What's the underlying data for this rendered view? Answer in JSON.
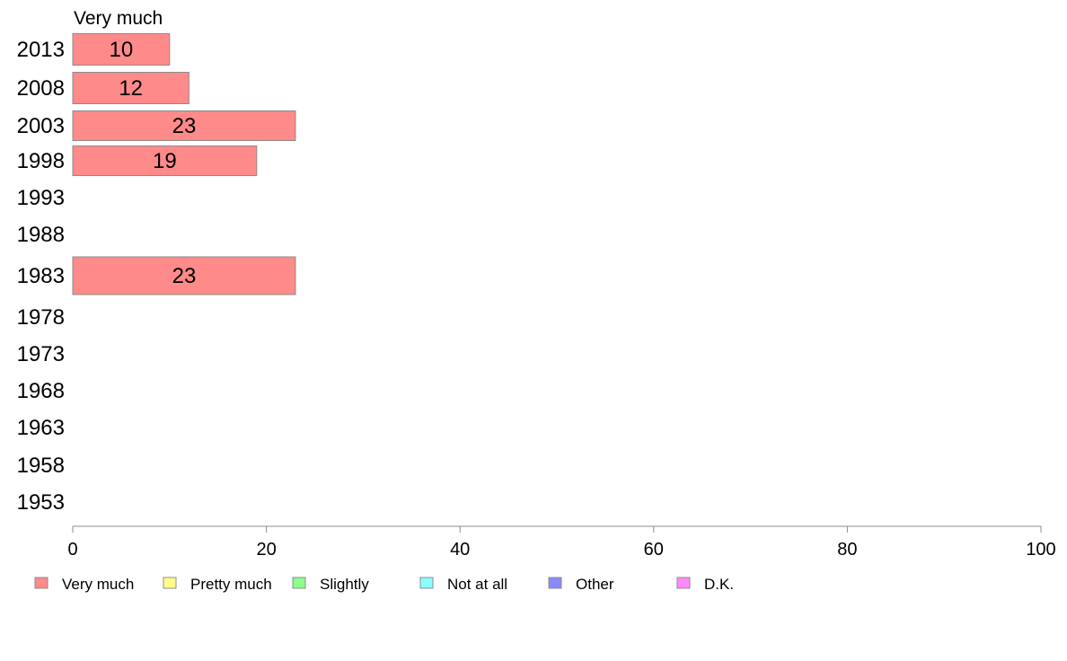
{
  "chart_data": {
    "type": "bar",
    "orientation": "horizontal",
    "panel_title": "Very much",
    "categories": [
      "2013",
      "2008",
      "2003",
      "1998",
      "1993",
      "1988",
      "1983",
      "1978",
      "1973",
      "1968",
      "1963",
      "1958",
      "1953"
    ],
    "series": [
      {
        "name": "Very much",
        "values": [
          10,
          12,
          23,
          19,
          null,
          null,
          23,
          null,
          null,
          null,
          null,
          null,
          null
        ]
      }
    ],
    "data_labels": [
      "10",
      "12",
      "23",
      "19",
      "",
      "",
      "23",
      "",
      "",
      "",
      "",
      "",
      ""
    ],
    "xlim": [
      0,
      100
    ],
    "x_ticks": [
      "0",
      "20",
      "40",
      "60",
      "80",
      "100"
    ],
    "grid": false,
    "legend": {
      "position": "bottom",
      "items": [
        {
          "label": "Very much",
          "color": "#ff8a8a"
        },
        {
          "label": "Pretty much",
          "color": "#ffff8a"
        },
        {
          "label": "Slightly",
          "color": "#8aff8a"
        },
        {
          "label": "Not at all",
          "color": "#8affff"
        },
        {
          "label": "Other",
          "color": "#8a8aff"
        },
        {
          "label": "D.K.",
          "color": "#ff8aff"
        }
      ]
    },
    "bar_color": "#ff8a8a",
    "bar_stroke": "#8c8c8c",
    "axis_color": "#8c8c8c"
  }
}
